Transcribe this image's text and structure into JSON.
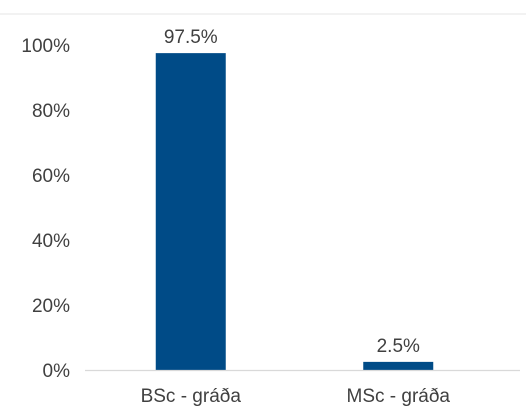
{
  "chart_data": {
    "type": "bar",
    "categories": [
      "BSc - gráða",
      "MSc - gráða"
    ],
    "values": [
      97.5,
      2.5
    ],
    "data_labels": [
      "97.5%",
      "2.5%"
    ],
    "y_ticks": [
      "0%",
      "20%",
      "40%",
      "60%",
      "80%",
      "100%"
    ],
    "ylim": [
      0,
      100
    ],
    "grid": false,
    "legend": "none",
    "bar_color": "#004b87",
    "axis_color": "#d9d9d9",
    "text_color": "#404040"
  }
}
